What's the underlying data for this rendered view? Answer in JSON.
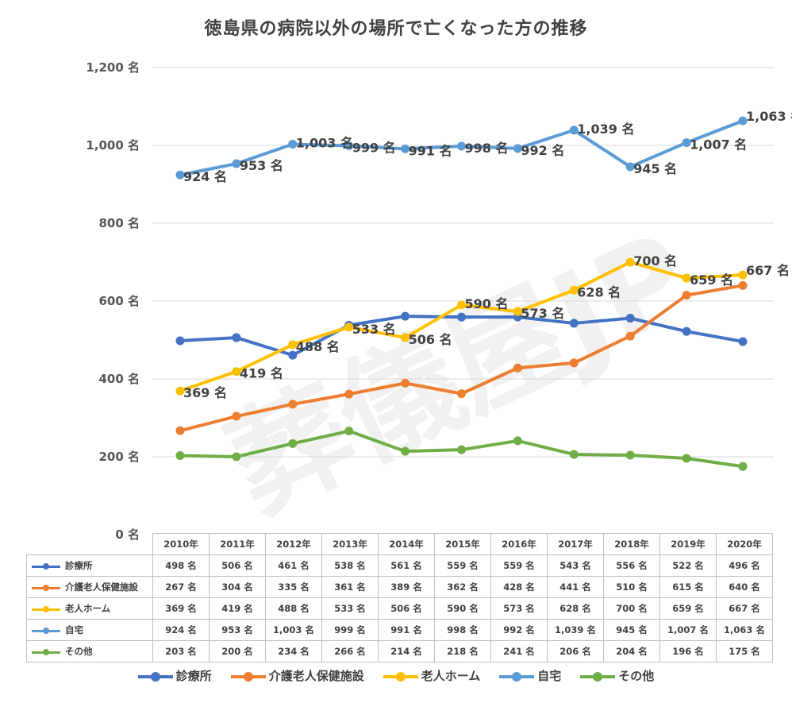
{
  "chart_data": {
    "type": "line",
    "title": "徳島県の病院以外の場所で亡くなった方の推移",
    "categories": [
      "2010年",
      "2011年",
      "2012年",
      "2013年",
      "2014年",
      "2015年",
      "2016年",
      "2017年",
      "2018年",
      "2019年",
      "2020年"
    ],
    "unit": "名",
    "ylim": [
      0,
      1200
    ],
    "yticks": [
      "0 名",
      "200 名",
      "400 名",
      "600 名",
      "800 名",
      "1,000 名",
      "1,200 名"
    ],
    "ytick_values": [
      0,
      200,
      400,
      600,
      800,
      1000,
      1200
    ],
    "grid": true,
    "legend_position": "bottom",
    "watermark": "葬儀屋JP",
    "series": [
      {
        "name": "診療所",
        "color": "#4472C4",
        "labeled": false,
        "values": [
          498,
          506,
          461,
          538,
          561,
          559,
          559,
          543,
          556,
          522,
          496
        ],
        "labels": [
          "498 名",
          "506 名",
          "461 名",
          "538 名",
          "561 名",
          "559 名",
          "559 名",
          "543 名",
          "556 名",
          "522 名",
          "496 名"
        ]
      },
      {
        "name": "介護老人保健施設",
        "color": "#ED7D31",
        "labeled": false,
        "values": [
          267,
          304,
          335,
          361,
          389,
          362,
          428,
          441,
          510,
          615,
          640
        ],
        "labels": [
          "267 名",
          "304 名",
          "335 名",
          "361 名",
          "389 名",
          "362 名",
          "428 名",
          "441 名",
          "510 名",
          "615 名",
          "640 名"
        ]
      },
      {
        "name": "老人ホーム",
        "color": "#FFC000",
        "labeled": true,
        "values": [
          369,
          419,
          488,
          533,
          506,
          590,
          573,
          628,
          700,
          659,
          667
        ],
        "labels": [
          "369 名",
          "419 名",
          "488 名",
          "533 名",
          "506 名",
          "590 名",
          "573 名",
          "628 名",
          "700 名",
          "659 名",
          "667 名"
        ]
      },
      {
        "name": "自宅",
        "color": "#5B9BD5",
        "labeled": true,
        "values": [
          924,
          953,
          1003,
          999,
          991,
          998,
          992,
          1039,
          945,
          1007,
          1063
        ],
        "labels": [
          "924 名",
          "953 名",
          "1,003 名",
          "999 名",
          "991 名",
          "998 名",
          "992 名",
          "1,039 名",
          "945 名",
          "1,007 名",
          "1,063 名"
        ]
      },
      {
        "name": "その他",
        "color": "#70AD47",
        "labeled": false,
        "values": [
          203,
          200,
          234,
          266,
          214,
          218,
          241,
          206,
          204,
          196,
          175
        ],
        "labels": [
          "203 名",
          "200 名",
          "234 名",
          "266 名",
          "214 名",
          "218 名",
          "241 名",
          "206 名",
          "204 名",
          "196 名",
          "175 名"
        ]
      }
    ]
  }
}
